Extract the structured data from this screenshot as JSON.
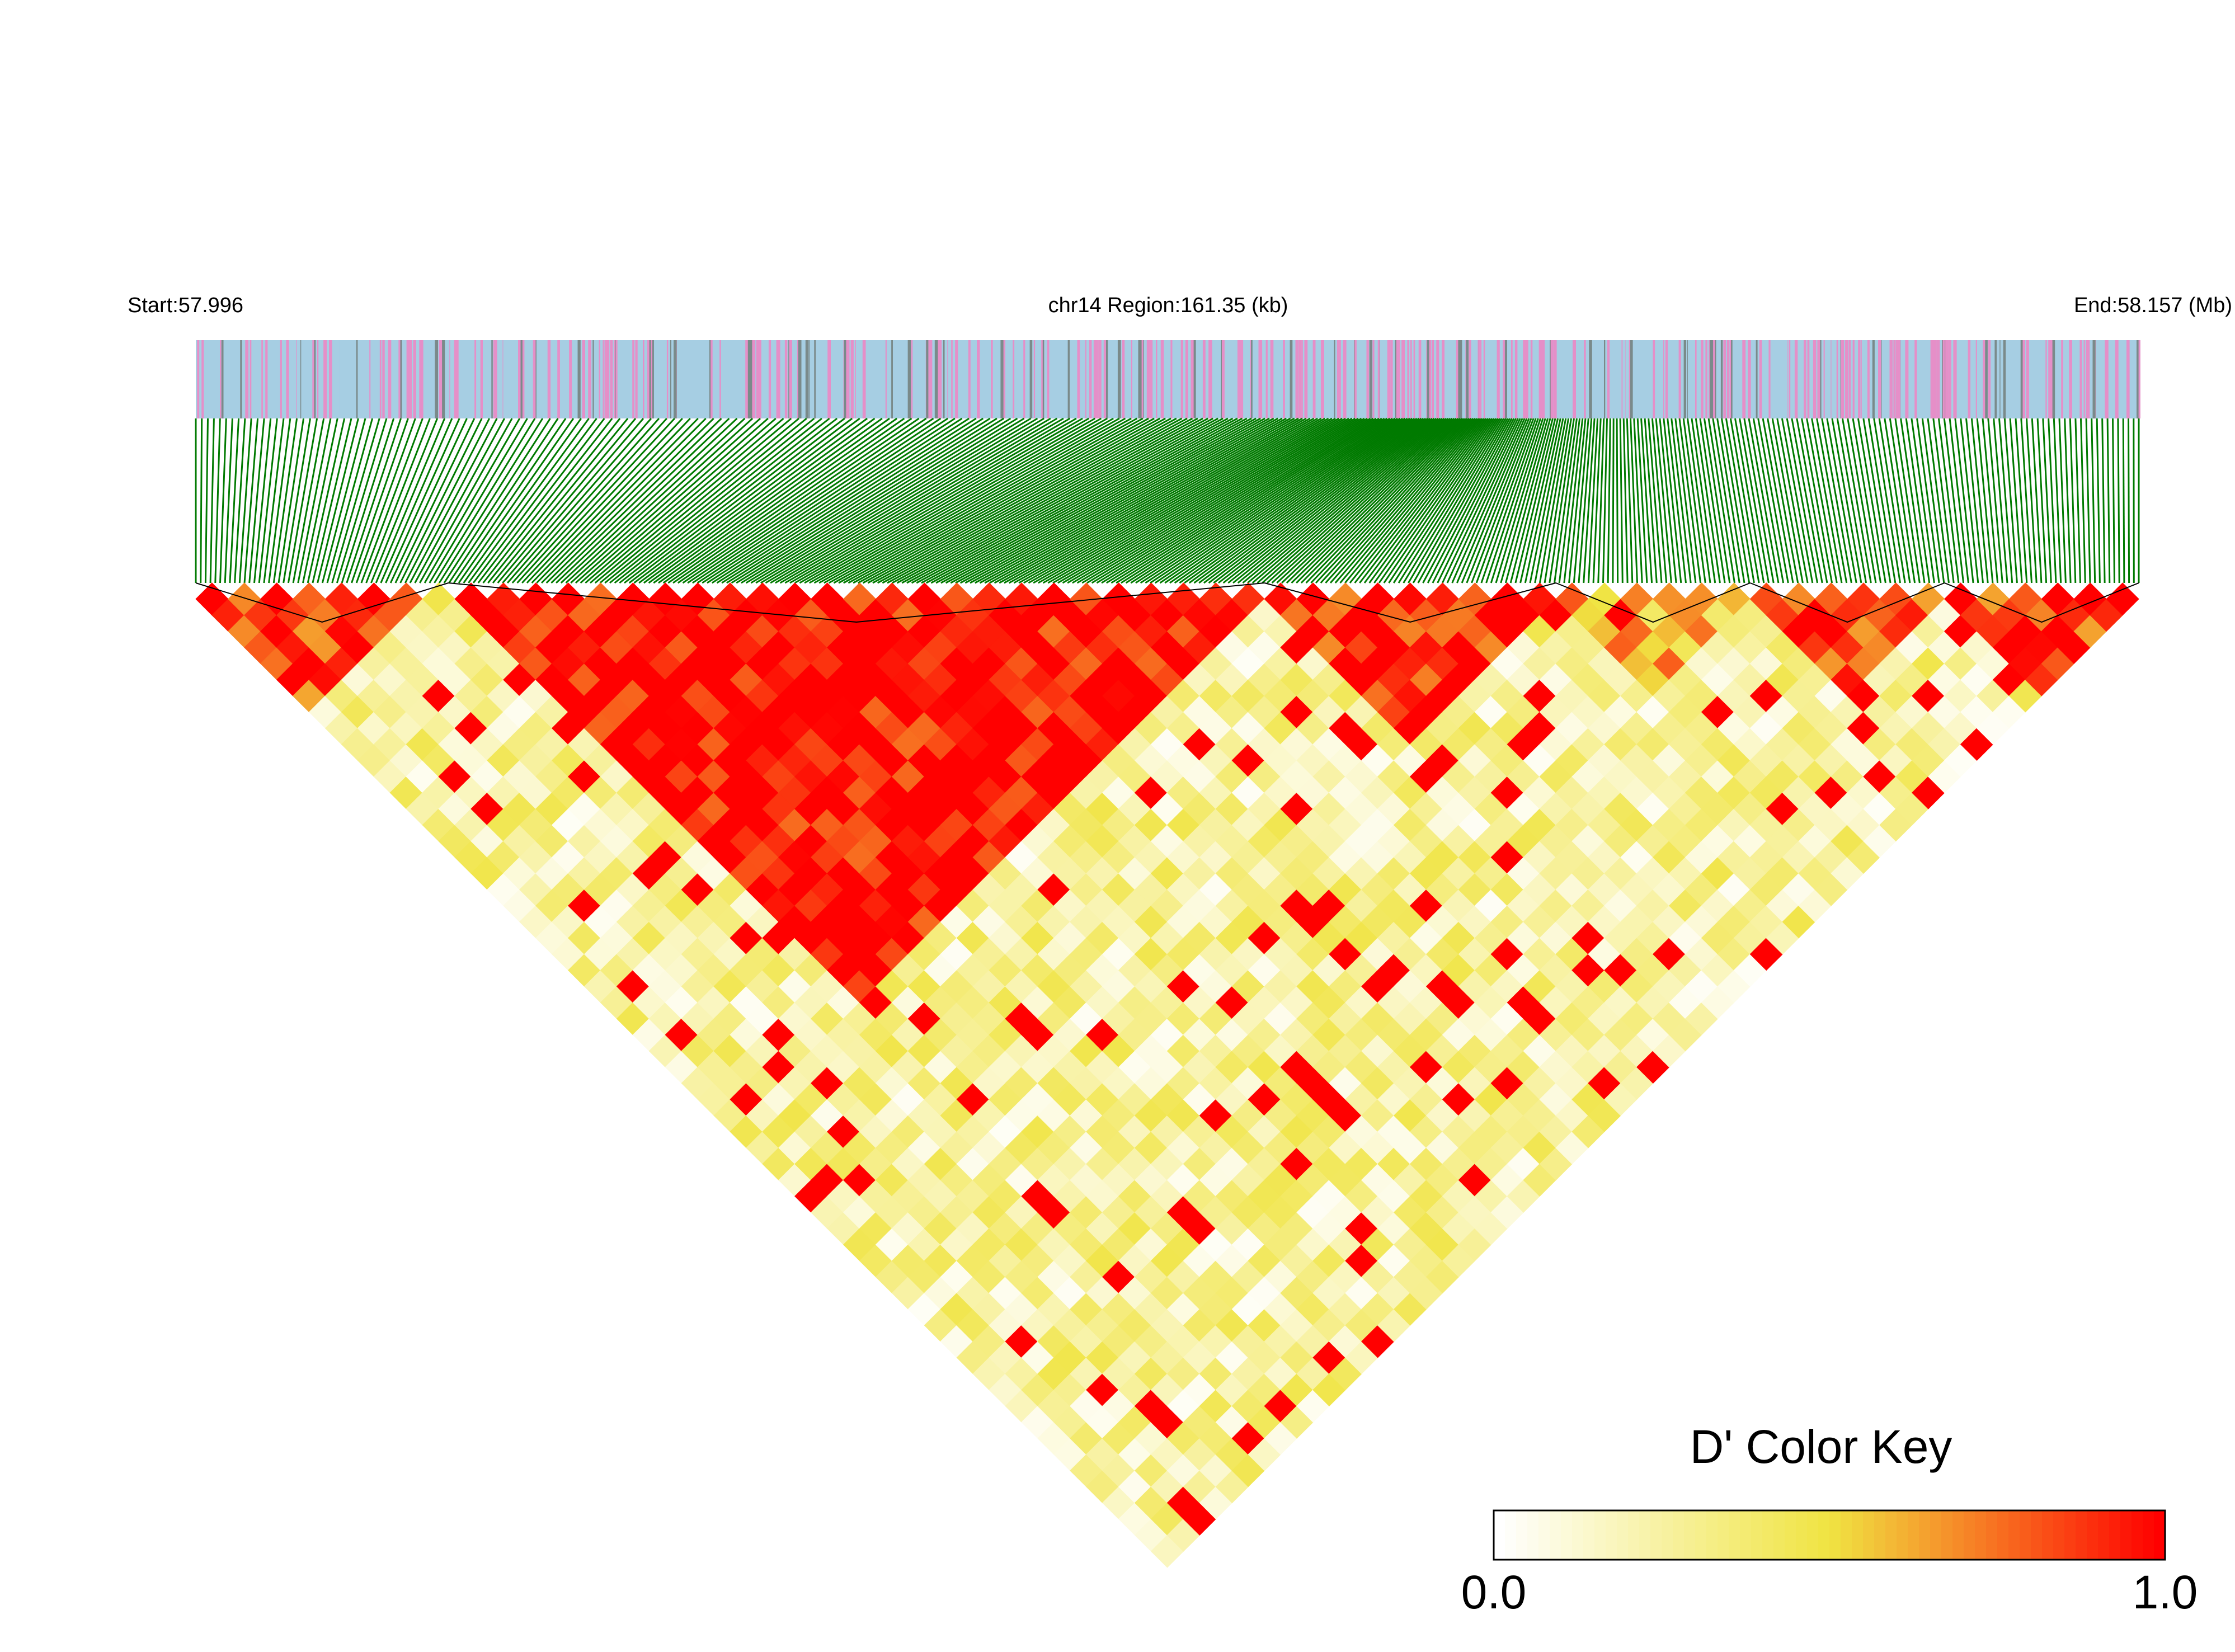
{
  "header": {
    "start_label": "Start:57.996",
    "region_label": "chr14 Region:161.35 (kb)",
    "end_label": "End:58.157 (Mb)"
  },
  "colors": {
    "snp_track_a": "#a6cee3",
    "snp_track_b": "#e58fc8",
    "snp_track_c": "#7a8a8a",
    "connector": "#007a00",
    "low": "#ffffff",
    "mid": "#f0e442",
    "high": "#ff0000",
    "block_outline": "#000000"
  },
  "chart_data": {
    "type": "heatmap",
    "metric": "D'",
    "chromosome": "chr14",
    "region_start_mb": 57.996,
    "region_end_mb": 58.157,
    "region_kb": 161.35,
    "color_key": {
      "title": "D' Color Key",
      "min_label": "0.0",
      "max_label": "1.0",
      "range": [
        0.0,
        1.0
      ],
      "stops": [
        "#ffffff",
        "#f0e442",
        "#ff0000"
      ]
    },
    "blocks": [
      {
        "snp_range": [
          0.0,
          0.13
        ],
        "d_prime": 0.85
      },
      {
        "snp_range": [
          0.13,
          0.55
        ],
        "d_prime": 0.98
      },
      {
        "snp_range": [
          0.55,
          0.7
        ],
        "d_prime": 0.9
      },
      {
        "snp_range": [
          0.7,
          0.8
        ],
        "d_prime": 0.6
      },
      {
        "snp_range": [
          0.8,
          0.9
        ],
        "d_prime": 0.75
      },
      {
        "snp_range": [
          0.9,
          1.0
        ],
        "d_prime": 0.85
      }
    ],
    "background_d_prime": 0.25
  }
}
